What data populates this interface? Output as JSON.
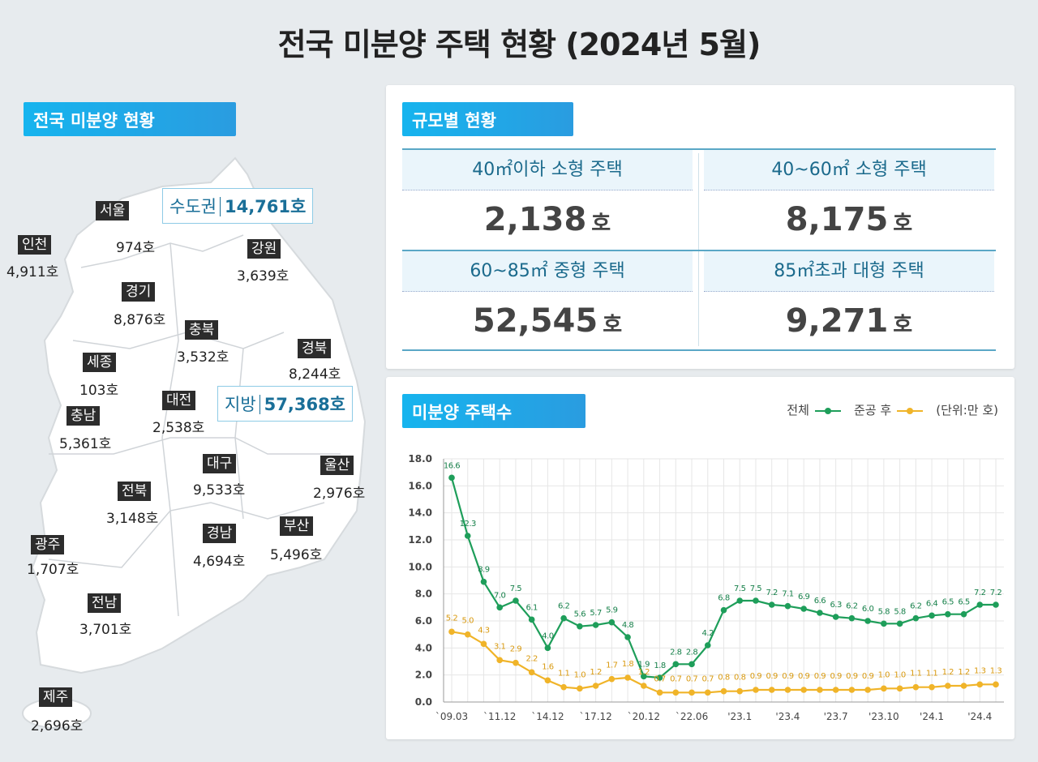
{
  "title": "전국 미분양 주택 현황  (2024년 5월)",
  "map_section": {
    "header": "전국 미분양 현황",
    "capital_area": {
      "label": "수도권",
      "value": "14,761호"
    },
    "provinces": {
      "label": "지방",
      "value": "57,368호"
    },
    "regions": [
      {
        "name": "서울",
        "count": "974호"
      },
      {
        "name": "인천",
        "count": "4,911호"
      },
      {
        "name": "경기",
        "count": "8,876호"
      },
      {
        "name": "강원",
        "count": "3,639호"
      },
      {
        "name": "충북",
        "count": "3,532호"
      },
      {
        "name": "경북",
        "count": "8,244호"
      },
      {
        "name": "세종",
        "count": "103호"
      },
      {
        "name": "대전",
        "count": "2,538호"
      },
      {
        "name": "충남",
        "count": "5,361호"
      },
      {
        "name": "대구",
        "count": "9,533호"
      },
      {
        "name": "울산",
        "count": "2,976호"
      },
      {
        "name": "전북",
        "count": "3,148호"
      },
      {
        "name": "부산",
        "count": "5,496호"
      },
      {
        "name": "경남",
        "count": "4,694호"
      },
      {
        "name": "광주",
        "count": "1,707호"
      },
      {
        "name": "전남",
        "count": "3,701호"
      },
      {
        "name": "제주",
        "count": "2,696호"
      }
    ]
  },
  "size_section": {
    "header": "규모별 현황",
    "unit": "호",
    "items": [
      {
        "label": "40㎡이하 소형 주택",
        "value": "2,138"
      },
      {
        "label": "40~60㎡ 소형 주택",
        "value": "8,175"
      },
      {
        "label": "60~85㎡ 중형 주택",
        "value": "52,545"
      },
      {
        "label": "85㎡초과 대형 주택",
        "value": "9,271"
      }
    ]
  },
  "chart_section": {
    "header": "미분양 주택수",
    "unit_label": "(단위:만 호)"
  },
  "colors": {
    "total": "#1e9e5a",
    "after_completion": "#f0b429",
    "header": "#16b4ee"
  },
  "chart_data": {
    "type": "line",
    "ylim": [
      0,
      18
    ],
    "yticks": [
      "0.0",
      "2.0",
      "4.0",
      "6.0",
      "8.0",
      "10.0",
      "12.0",
      "14.0",
      "16.0",
      "18.0"
    ],
    "grid": true,
    "legend": "top-right",
    "xtick_labels": [
      "`09.03",
      "`11.12",
      "`14.12",
      "`17.12",
      "`20.12",
      "`22.06",
      "'23.1",
      "'23.4",
      "'23.7",
      "'23.10",
      "'24.1",
      "'24.4"
    ],
    "series": [
      {
        "name": "전체",
        "values": [
          16.6,
          12.3,
          8.9,
          7.0,
          7.5,
          6.1,
          4.0,
          6.2,
          5.6,
          5.7,
          5.9,
          4.8,
          1.9,
          1.8,
          2.8,
          2.8,
          4.2,
          6.8,
          7.5,
          7.5,
          7.2,
          7.1,
          6.9,
          6.6,
          6.3,
          6.2,
          6.0,
          5.8,
          5.8,
          6.2,
          6.4,
          6.5,
          6.5,
          7.2,
          7.2
        ]
      },
      {
        "name": "준공 후",
        "values": [
          5.2,
          5.0,
          4.3,
          3.1,
          2.9,
          2.2,
          1.6,
          1.1,
          1.0,
          1.2,
          1.7,
          1.8,
          1.2,
          0.7,
          0.7,
          0.7,
          0.7,
          0.8,
          0.8,
          0.9,
          0.9,
          0.9,
          0.9,
          0.9,
          0.9,
          0.9,
          0.9,
          1.0,
          1.0,
          1.1,
          1.1,
          1.2,
          1.2,
          1.3,
          1.3
        ]
      }
    ]
  }
}
